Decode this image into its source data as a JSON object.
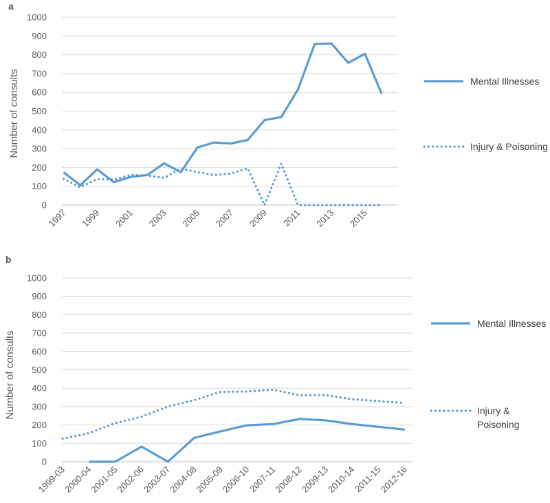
{
  "colors": {
    "series": "#5b9bd5",
    "grid": "#d9d9d9",
    "axis": "#bfbfbf",
    "text": "#595959"
  },
  "chart_data": [
    {
      "type": "line",
      "panel_label": "a",
      "ylabel": "Number of consults",
      "ylim": [
        0,
        1000
      ],
      "yticks": [
        "0",
        "100",
        "200",
        "300",
        "400",
        "500",
        "600",
        "700",
        "800",
        "900",
        "1000"
      ],
      "x": [
        1997,
        1998,
        1999,
        2000,
        2001,
        2002,
        2003,
        2004,
        2005,
        2006,
        2007,
        2008,
        2009,
        2010,
        2011,
        2012,
        2013,
        2014,
        2015,
        2016
      ],
      "xtick_labels": [
        "1997",
        "1999",
        "2001",
        "2003",
        "2005",
        "2007",
        "2009",
        "2011",
        "2013",
        "2015"
      ],
      "series": [
        {
          "name": "Mental Illnesses",
          "style": "solid",
          "values": [
            175,
            105,
            190,
            122,
            150,
            160,
            222,
            175,
            307,
            333,
            328,
            347,
            452,
            468,
            615,
            858,
            860,
            757,
            805,
            592
          ]
        },
        {
          "name": "Injury & Poisoning",
          "style": "dotted",
          "values": [
            140,
            95,
            138,
            135,
            160,
            158,
            145,
            195,
            175,
            160,
            168,
            195,
            0,
            220,
            0,
            0,
            0,
            0,
            0,
            0
          ]
        }
      ],
      "legend": [
        "Mental Illnesses",
        "Injury & Poisoning"
      ]
    },
    {
      "type": "line",
      "panel_label": "b",
      "ylabel": "Number of consults",
      "ylim": [
        0,
        1000
      ],
      "yticks": [
        "0",
        "100",
        "200",
        "300",
        "400",
        "500",
        "600",
        "700",
        "800",
        "900",
        "1000"
      ],
      "categories": [
        "1999-03",
        "2000-04",
        "2001-05",
        "2002-06",
        "2003-07",
        "2004-08",
        "2005-09",
        "2006-10",
        "2007-11",
        "2008-12",
        "2009-13",
        "2010-14",
        "2011-15",
        "2012-16"
      ],
      "series": [
        {
          "name": "Mental Illnesses",
          "style": "solid",
          "values": [
            null,
            0,
            0,
            82,
            0,
            130,
            165,
            198,
            205,
            233,
            225,
            205,
            190,
            175
          ]
        },
        {
          "name": "Injury & Poisoning",
          "style": "dotted",
          "values": [
            125,
            155,
            210,
            245,
            300,
            335,
            380,
            382,
            392,
            362,
            362,
            340,
            330,
            320
          ]
        }
      ],
      "legend": [
        "Mental Illnesses",
        "Injury &",
        "Poisoning"
      ]
    }
  ]
}
